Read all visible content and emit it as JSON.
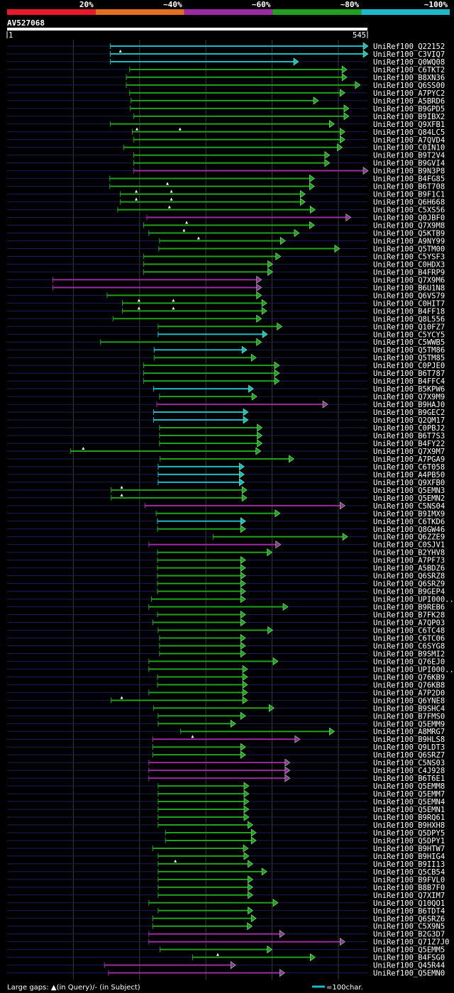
{
  "chart_data": {
    "type": "alignment",
    "query_id": "AV527068",
    "query_length": 545,
    "ruler": {
      "start": "1",
      "end": "545"
    },
    "identity_legend": [
      {
        "label": "20%",
        "color": "#e8192c"
      },
      {
        "label": "~40%",
        "color": "#e07020"
      },
      {
        "label": "~60%",
        "color": "#9b2ba5"
      },
      {
        "label": "~80%",
        "color": "#21a020"
      },
      {
        "label": "~100%",
        "color": "#1fb8c8"
      }
    ],
    "hits": [
      {
        "name": "UniRef100_Q22152",
        "start": 157,
        "end": 545,
        "color": "#1fb8c8",
        "ins": []
      },
      {
        "name": "UniRef100_C3VIQ7",
        "start": 157,
        "end": 545,
        "color": "#1fb8c8",
        "ins": [
          172
        ]
      },
      {
        "name": "UniRef100_Q0WQ08",
        "start": 157,
        "end": 440,
        "color": "#1fb8c8",
        "ins": []
      },
      {
        "name": "UniRef100_C6TKT2",
        "start": 186,
        "end": 513,
        "color": "#21a020",
        "ins": []
      },
      {
        "name": "UniRef100_B8XN36",
        "start": 181,
        "end": 513,
        "color": "#21a020",
        "ins": []
      },
      {
        "name": "UniRef100_Q6SS00",
        "start": 181,
        "end": 533,
        "color": "#21a020",
        "ins": []
      },
      {
        "name": "UniRef100_A7PYC2",
        "start": 186,
        "end": 510,
        "color": "#21a020",
        "ins": []
      },
      {
        "name": "UniRef100_A5BRD6",
        "start": 188,
        "end": 470,
        "color": "#21a020",
        "ins": []
      },
      {
        "name": "UniRef100_B9GPD5",
        "start": 187,
        "end": 516,
        "color": "#21a020",
        "ins": []
      },
      {
        "name": "UniRef100_B9IBX2",
        "start": 192,
        "end": 516,
        "color": "#21a020",
        "ins": []
      },
      {
        "name": "UniRef100_Q9XFB1",
        "start": 157,
        "end": 494,
        "color": "#21a020",
        "ins": []
      },
      {
        "name": "UniRef100_Q84LC5",
        "start": 190,
        "end": 510,
        "color": "#21a020",
        "ins": [
          197,
          262
        ]
      },
      {
        "name": "UniRef100_A7QVD4",
        "start": 192,
        "end": 510,
        "color": "#21a020",
        "ins": []
      },
      {
        "name": "UniRef100_C0IN10",
        "start": 177,
        "end": 506,
        "color": "#21a020",
        "ins": []
      },
      {
        "name": "UniRef100_B9T2V4",
        "start": 192,
        "end": 487,
        "color": "#21a020",
        "ins": []
      },
      {
        "name": "UniRef100_B9GVI4",
        "start": 192,
        "end": 487,
        "color": "#21a020",
        "ins": []
      },
      {
        "name": "UniRef100_B9N3P8",
        "start": 192,
        "end": 546,
        "color": "#9b2ba5",
        "ins": []
      },
      {
        "name": "UniRef100_B4FG85",
        "start": 156,
        "end": 464,
        "color": "#21a020",
        "ins": []
      },
      {
        "name": "UniRef100_B6T708",
        "start": 156,
        "end": 464,
        "color": "#21a020",
        "ins": [
          243
        ]
      },
      {
        "name": "UniRef100_B9F1C1",
        "start": 172,
        "end": 450,
        "color": "#21a020",
        "ins": [
          196,
          249
        ]
      },
      {
        "name": "UniRef100_Q6H668",
        "start": 172,
        "end": 450,
        "color": "#21a020",
        "ins": [
          196,
          249
        ]
      },
      {
        "name": "UniRef100_C5XS56",
        "start": 168,
        "end": 465,
        "color": "#21a020",
        "ins": [
          246
        ]
      },
      {
        "name": "UniRef100_Q0JBF0",
        "start": 212,
        "end": 519,
        "color": "#9b2ba5",
        "ins": []
      },
      {
        "name": "UniRef100_Q7X9M8",
        "start": 207,
        "end": 464,
        "color": "#21a020",
        "ins": [
          272
        ]
      },
      {
        "name": "UniRef100_Q5KTB9",
        "start": 215,
        "end": 441,
        "color": "#21a020",
        "ins": [
          268
        ]
      },
      {
        "name": "UniRef100_A9NY99",
        "start": 231,
        "end": 420,
        "color": "#21a020",
        "ins": [
          290
        ]
      },
      {
        "name": "UniRef100_Q5TM00",
        "start": 230,
        "end": 502,
        "color": "#21a020",
        "ins": []
      },
      {
        "name": "UniRef100_C5YSF3",
        "start": 207,
        "end": 413,
        "color": "#21a020",
        "ins": []
      },
      {
        "name": "UniRef100_C0HDX3",
        "start": 207,
        "end": 401,
        "color": "#21a020",
        "ins": []
      },
      {
        "name": "UniRef100_B4FRP9",
        "start": 207,
        "end": 401,
        "color": "#21a020",
        "ins": []
      },
      {
        "name": "UniRef100_Q7X9M6",
        "start": 70,
        "end": 384,
        "color": "#9b2ba5",
        "ins": []
      },
      {
        "name": "UniRef100_B6U1N8",
        "start": 70,
        "end": 384,
        "color": "#9b2ba5",
        "ins": []
      },
      {
        "name": "UniRef100_Q6VS79",
        "start": 152,
        "end": 384,
        "color": "#21a020",
        "ins": []
      },
      {
        "name": "UniRef100_C0HIT7",
        "start": 175,
        "end": 392,
        "color": "#21a020",
        "ins": [
          200,
          252
        ]
      },
      {
        "name": "UniRef100_B4FF18",
        "start": 175,
        "end": 392,
        "color": "#21a020",
        "ins": [
          200,
          252
        ]
      },
      {
        "name": "UniRef100_Q8L556",
        "start": 161,
        "end": 384,
        "color": "#21a020",
        "ins": []
      },
      {
        "name": "UniRef100_Q10FZ7",
        "start": 229,
        "end": 415,
        "color": "#21a020",
        "ins": []
      },
      {
        "name": "UniRef100_C5YCY5",
        "start": 229,
        "end": 393,
        "color": "#1fb8c8",
        "ins": []
      },
      {
        "name": "UniRef100_C5WWB5",
        "start": 142,
        "end": 384,
        "color": "#21a020",
        "ins": []
      },
      {
        "name": "UniRef100_Q5TM86",
        "start": 223,
        "end": 362,
        "color": "#1fb8c8",
        "ins": []
      },
      {
        "name": "UniRef100_Q5TM85",
        "start": 223,
        "end": 376,
        "color": "#21a020",
        "ins": []
      },
      {
        "name": "UniRef100_C0PJE0",
        "start": 207,
        "end": 411,
        "color": "#21a020",
        "ins": []
      },
      {
        "name": "UniRef100_B6T787",
        "start": 207,
        "end": 411,
        "color": "#21a020",
        "ins": []
      },
      {
        "name": "UniRef100_B4FFC4",
        "start": 207,
        "end": 411,
        "color": "#21a020",
        "ins": []
      },
      {
        "name": "UniRef100_B5KPW6",
        "start": 222,
        "end": 372,
        "color": "#1fb8c8",
        "ins": []
      },
      {
        "name": "UniRef100_Q7X9M9",
        "start": 231,
        "end": 377,
        "color": "#21a020",
        "ins": []
      },
      {
        "name": "UniRef100_B9HAJ0",
        "start": 227,
        "end": 484,
        "color": "#9b2ba5",
        "ins": []
      },
      {
        "name": "UniRef100_B9GEC2",
        "start": 222,
        "end": 364,
        "color": "#1fb8c8",
        "ins": []
      },
      {
        "name": "UniRef100_Q2QM17",
        "start": 222,
        "end": 364,
        "color": "#1fb8c8",
        "ins": []
      },
      {
        "name": "UniRef100_C0PBJ2",
        "start": 231,
        "end": 385,
        "color": "#21a020",
        "ins": []
      },
      {
        "name": "UniRef100_B6T7S3",
        "start": 231,
        "end": 385,
        "color": "#21a020",
        "ins": []
      },
      {
        "name": "UniRef100_B4FY22",
        "start": 231,
        "end": 385,
        "color": "#21a020",
        "ins": []
      },
      {
        "name": "UniRef100_Q7X9M7",
        "start": 97,
        "end": 383,
        "color": "#21a020",
        "ins": [
          116
        ]
      },
      {
        "name": "UniRef100_A7PGA9",
        "start": 232,
        "end": 433,
        "color": "#21a020",
        "ins": []
      },
      {
        "name": "UniRef100_C6T058",
        "start": 229,
        "end": 358,
        "color": "#1fb8c8",
        "ins": []
      },
      {
        "name": "UniRef100_A4PB50",
        "start": 229,
        "end": 358,
        "color": "#1fb8c8",
        "ins": []
      },
      {
        "name": "UniRef100_Q9XFB0",
        "start": 229,
        "end": 358,
        "color": "#1fb8c8",
        "ins": []
      },
      {
        "name": "UniRef100_Q5EMN3",
        "start": 158,
        "end": 362,
        "color": "#21a020",
        "ins": [
          174
        ]
      },
      {
        "name": "UniRef100_Q5EMN2",
        "start": 158,
        "end": 362,
        "color": "#21a020",
        "ins": [
          174
        ]
      },
      {
        "name": "UniRef100_C5NS04",
        "start": 209,
        "end": 510,
        "color": "#9b2ba5",
        "ins": []
      },
      {
        "name": "UniRef100_B9IMX9",
        "start": 226,
        "end": 412,
        "color": "#21a020",
        "ins": []
      },
      {
        "name": "UniRef100_C6TKD6",
        "start": 228,
        "end": 360,
        "color": "#1fb8c8",
        "ins": []
      },
      {
        "name": "UniRef100_Q8GW46",
        "start": 228,
        "end": 360,
        "color": "#21a020",
        "ins": []
      },
      {
        "name": "UniRef100_Q6ZZE9",
        "start": 312,
        "end": 514,
        "color": "#21a020",
        "ins": []
      },
      {
        "name": "UniRef100_C0SJV1",
        "start": 215,
        "end": 413,
        "color": "#9b2ba5",
        "ins": []
      },
      {
        "name": "UniRef100_B2YHV8",
        "start": 228,
        "end": 400,
        "color": "#21a020",
        "ins": []
      },
      {
        "name": "UniRef100_A7PF73",
        "start": 228,
        "end": 360,
        "color": "#21a020",
        "ins": []
      },
      {
        "name": "UniRef100_A5BDZ6",
        "start": 228,
        "end": 360,
        "color": "#21a020",
        "ins": []
      },
      {
        "name": "UniRef100_Q6SRZ8",
        "start": 228,
        "end": 360,
        "color": "#21a020",
        "ins": []
      },
      {
        "name": "UniRef100_Q6SRZ9",
        "start": 228,
        "end": 360,
        "color": "#21a020",
        "ins": []
      },
      {
        "name": "UniRef100_B9GEP4",
        "start": 228,
        "end": 360,
        "color": "#21a020",
        "ins": []
      },
      {
        "name": "UniRef100_UPI000...",
        "start": 219,
        "end": 360,
        "color": "#21a020",
        "ins": []
      },
      {
        "name": "UniRef100_B9REB6",
        "start": 215,
        "end": 424,
        "color": "#21a020",
        "ins": []
      },
      {
        "name": "UniRef100_B7FK28",
        "start": 228,
        "end": 360,
        "color": "#21a020",
        "ins": []
      },
      {
        "name": "UniRef100_A7QP03",
        "start": 221,
        "end": 360,
        "color": "#21a020",
        "ins": []
      },
      {
        "name": "UniRef100_C6TC48",
        "start": 229,
        "end": 401,
        "color": "#21a020",
        "ins": []
      },
      {
        "name": "UniRef100_C6TC06",
        "start": 231,
        "end": 360,
        "color": "#21a020",
        "ins": []
      },
      {
        "name": "UniRef100_C6SYG8",
        "start": 231,
        "end": 360,
        "color": "#21a020",
        "ins": []
      },
      {
        "name": "UniRef100_B9SMI2",
        "start": 231,
        "end": 360,
        "color": "#21a020",
        "ins": []
      },
      {
        "name": "UniRef100_Q76EJ0",
        "start": 215,
        "end": 409,
        "color": "#21a020",
        "ins": []
      },
      {
        "name": "UniRef100_UPI000...",
        "start": 215,
        "end": 363,
        "color": "#21a020",
        "ins": []
      },
      {
        "name": "UniRef100_Q76KB9",
        "start": 228,
        "end": 363,
        "color": "#21a020",
        "ins": []
      },
      {
        "name": "UniRef100_Q76KB8",
        "start": 228,
        "end": 363,
        "color": "#21a020",
        "ins": []
      },
      {
        "name": "UniRef100_A7P2D0",
        "start": 215,
        "end": 363,
        "color": "#21a020",
        "ins": []
      },
      {
        "name": "UniRef100_Q6YNE8",
        "start": 158,
        "end": 363,
        "color": "#21a020",
        "ins": [
          174
        ]
      },
      {
        "name": "UniRef100_B9SHC4",
        "start": 222,
        "end": 403,
        "color": "#21a020",
        "ins": []
      },
      {
        "name": "UniRef100_B7FMS0",
        "start": 229,
        "end": 360,
        "color": "#21a020",
        "ins": []
      },
      {
        "name": "UniRef100_Q5EMM9",
        "start": 229,
        "end": 345,
        "color": "#21a020",
        "ins": []
      },
      {
        "name": "UniRef100_A8MRG7",
        "start": 263,
        "end": 494,
        "color": "#21a020",
        "ins": []
      },
      {
        "name": "UniRef100_B9HLS8",
        "start": 221,
        "end": 442,
        "color": "#9b2ba5",
        "ins": [
          281
        ]
      },
      {
        "name": "UniRef100_Q9LDT3",
        "start": 221,
        "end": 360,
        "color": "#21a020",
        "ins": []
      },
      {
        "name": "UniRef100_Q6SRZ7",
        "start": 221,
        "end": 360,
        "color": "#21a020",
        "ins": []
      },
      {
        "name": "UniRef100_C5NS03",
        "start": 215,
        "end": 427,
        "color": "#9b2ba5",
        "ins": []
      },
      {
        "name": "UniRef100_C4J928",
        "start": 215,
        "end": 427,
        "color": "#9b2ba5",
        "ins": []
      },
      {
        "name": "UniRef100_B6T6E1",
        "start": 215,
        "end": 427,
        "color": "#9b2ba5",
        "ins": []
      },
      {
        "name": "UniRef100_Q5EMM8",
        "start": 229,
        "end": 365,
        "color": "#21a020",
        "ins": []
      },
      {
        "name": "UniRef100_Q5EMM7",
        "start": 229,
        "end": 365,
        "color": "#21a020",
        "ins": []
      },
      {
        "name": "UniRef100_Q5EMN4",
        "start": 229,
        "end": 365,
        "color": "#21a020",
        "ins": []
      },
      {
        "name": "UniRef100_Q5EMN1",
        "start": 229,
        "end": 365,
        "color": "#21a020",
        "ins": []
      },
      {
        "name": "UniRef100_B9RQ61",
        "start": 229,
        "end": 365,
        "color": "#21a020",
        "ins": []
      },
      {
        "name": "UniRef100_B9HXH8",
        "start": 229,
        "end": 371,
        "color": "#21a020",
        "ins": []
      },
      {
        "name": "UniRef100_Q5DPY5",
        "start": 240,
        "end": 376,
        "color": "#21a020",
        "ins": []
      },
      {
        "name": "UniRef100_Q5DPY1",
        "start": 240,
        "end": 376,
        "color": "#21a020",
        "ins": []
      },
      {
        "name": "UniRef100_B9HTW7",
        "start": 221,
        "end": 364,
        "color": "#21a020",
        "ins": []
      },
      {
        "name": "UniRef100_B9HIG4",
        "start": 229,
        "end": 365,
        "color": "#21a020",
        "ins": []
      },
      {
        "name": "UniRef100_B9II13",
        "start": 229,
        "end": 371,
        "color": "#21a020",
        "ins": [
          255
        ]
      },
      {
        "name": "UniRef100_Q5CB54",
        "start": 229,
        "end": 392,
        "color": "#21a020",
        "ins": []
      },
      {
        "name": "UniRef100_B9FVL0",
        "start": 229,
        "end": 371,
        "color": "#21a020",
        "ins": []
      },
      {
        "name": "UniRef100_B8B7F0",
        "start": 229,
        "end": 371,
        "color": "#21a020",
        "ins": []
      },
      {
        "name": "UniRef100_Q7XIM7",
        "start": 229,
        "end": 371,
        "color": "#21a020",
        "ins": []
      },
      {
        "name": "UniRef100_Q10QO1",
        "start": 215,
        "end": 409,
        "color": "#21a020",
        "ins": []
      },
      {
        "name": "UniRef100_B6TDT4",
        "start": 229,
        "end": 371,
        "color": "#21a020",
        "ins": []
      },
      {
        "name": "UniRef100_Q6SRZ6",
        "start": 221,
        "end": 376,
        "color": "#21a020",
        "ins": []
      },
      {
        "name": "UniRef100_C5X9N5",
        "start": 221,
        "end": 370,
        "color": "#21a020",
        "ins": []
      },
      {
        "name": "UniRef100_B2G3D7",
        "start": 215,
        "end": 419,
        "color": "#9b2ba5",
        "ins": []
      },
      {
        "name": "UniRef100_Q71Z7J0",
        "start": 215,
        "end": 510,
        "color": "#9b2ba5",
        "ins": []
      },
      {
        "name": "UniRef100_Q5EMM5",
        "start": 232,
        "end": 400,
        "color": "#21a020",
        "ins": []
      },
      {
        "name": "UniRef100_B4FSG0",
        "start": 281,
        "end": 465,
        "color": "#21a020",
        "ins": [
          319
        ]
      },
      {
        "name": "UniRef100_Q45R44",
        "start": 148,
        "end": 345,
        "color": "#9b2ba5",
        "ins": []
      },
      {
        "name": "UniRef100_Q5EMN0",
        "start": 154,
        "end": 419,
        "color": "#9b2ba5",
        "ins": []
      }
    ],
    "footer": {
      "gap_text": "Large gaps: ▲(in Query)/- (in Subject)",
      "scale_text": "=100char."
    }
  }
}
